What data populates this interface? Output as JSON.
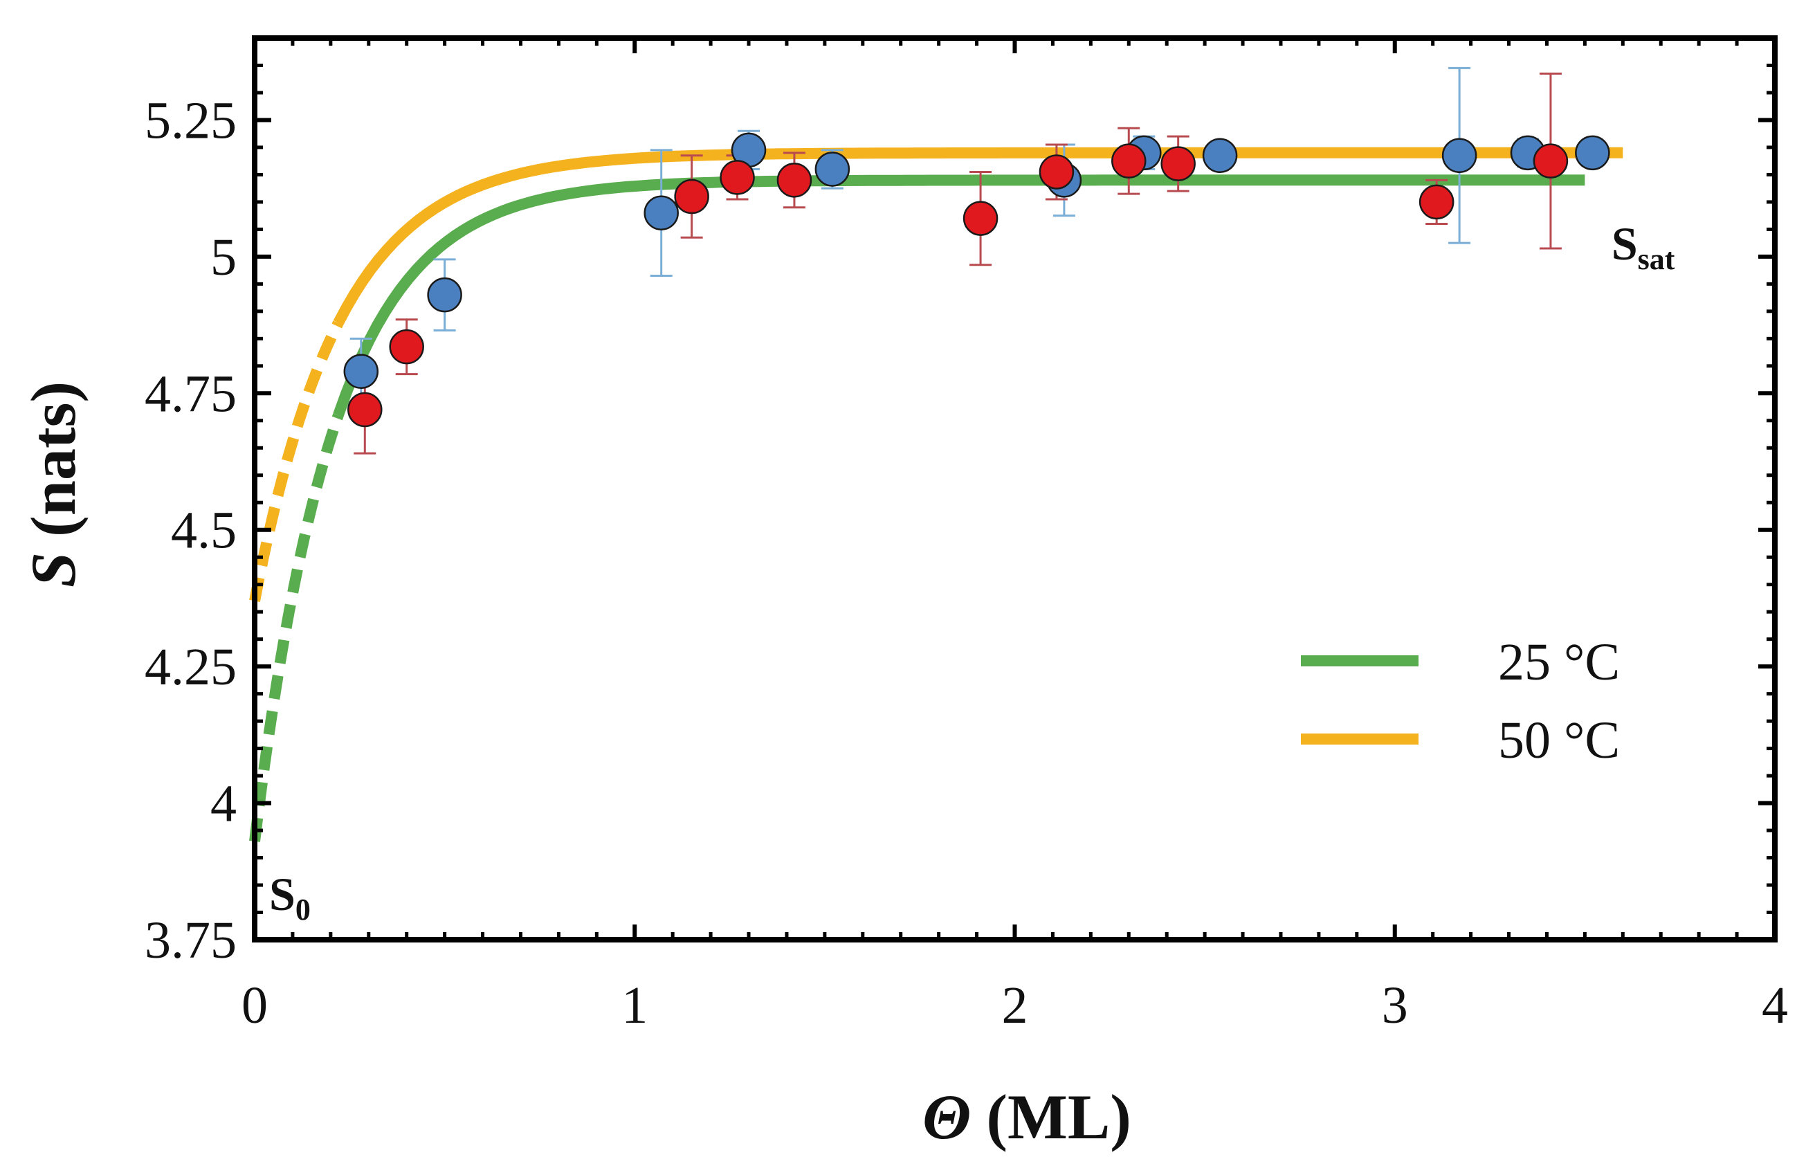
{
  "chart_data": {
    "type": "scatter",
    "title": "",
    "xlabel_symbol": "Θ",
    "xlabel_unit": "(ML)",
    "ylabel_symbol": "S",
    "ylabel_unit": "(nats)",
    "xlim": [
      0,
      4
    ],
    "ylim": [
      3.75,
      5.4
    ],
    "xticks": [
      0,
      1,
      2,
      3,
      4
    ],
    "xtick_labels": [
      "0",
      "1",
      "2",
      "3",
      "4"
    ],
    "yticks": [
      3.75,
      4,
      4.25,
      4.5,
      4.75,
      5,
      5.25
    ],
    "ytick_labels": [
      "3.75",
      "4",
      "4.25",
      "4.5",
      "4.75",
      "5",
      "5.25"
    ],
    "grid": false,
    "legend_position": "center-right",
    "annotations": {
      "s0": {
        "main": "S",
        "sub": "0",
        "x": 0.02,
        "y": 3.83
      },
      "ssat": {
        "main": "S",
        "sub": "sat",
        "x": 3.57,
        "y": 5.02
      }
    },
    "series": [
      {
        "name": "25 °C",
        "kind": "fit",
        "color": "#5aad4e",
        "fit": {
          "s0": 3.93,
          "ssat": 5.14,
          "k": 4.7
        },
        "dash_range": [
          0.0,
          0.22
        ],
        "solid_range": [
          0.22,
          3.5
        ]
      },
      {
        "name": "50 °C",
        "kind": "fit",
        "color": "#f5b21f",
        "fit": {
          "s0": 4.37,
          "ssat": 5.19,
          "k": 4.4
        },
        "dash_range": [
          0.0,
          0.22
        ],
        "solid_range": [
          0.22,
          3.6
        ]
      },
      {
        "name": "blue markers",
        "kind": "points",
        "color": "#4a80c0",
        "error_color": "#7aaed6",
        "points": [
          {
            "x": 0.28,
            "y": 4.79,
            "err": 0.06
          },
          {
            "x": 0.5,
            "y": 4.93,
            "err": 0.065
          },
          {
            "x": 1.07,
            "y": 5.08,
            "err": 0.115
          },
          {
            "x": 1.3,
            "y": 5.195,
            "err": 0.035
          },
          {
            "x": 1.52,
            "y": 5.16,
            "err": 0.035
          },
          {
            "x": 2.13,
            "y": 5.14,
            "err": 0.065
          },
          {
            "x": 2.34,
            "y": 5.19,
            "err": 0.03
          },
          {
            "x": 2.54,
            "y": 5.185,
            "err": 0.0
          },
          {
            "x": 3.17,
            "y": 5.185,
            "err": 0.16
          },
          {
            "x": 3.35,
            "y": 5.19,
            "err": 0.025
          },
          {
            "x": 3.52,
            "y": 5.19,
            "err": 0.0
          }
        ]
      },
      {
        "name": "red markers",
        "kind": "points",
        "color": "#e0191f",
        "error_color": "#b84b50",
        "points": [
          {
            "x": 0.29,
            "y": 4.72,
            "err": 0.08
          },
          {
            "x": 0.4,
            "y": 4.835,
            "err": 0.05
          },
          {
            "x": 1.15,
            "y": 5.11,
            "err": 0.075
          },
          {
            "x": 1.27,
            "y": 5.145,
            "err": 0.04
          },
          {
            "x": 1.42,
            "y": 5.14,
            "err": 0.05
          },
          {
            "x": 1.91,
            "y": 5.07,
            "err": 0.085
          },
          {
            "x": 2.11,
            "y": 5.155,
            "err": 0.05
          },
          {
            "x": 2.3,
            "y": 5.175,
            "err": 0.06
          },
          {
            "x": 2.43,
            "y": 5.17,
            "err": 0.05
          },
          {
            "x": 3.11,
            "y": 5.1,
            "err": 0.04
          },
          {
            "x": 3.41,
            "y": 5.175,
            "err": 0.16
          }
        ]
      }
    ]
  }
}
